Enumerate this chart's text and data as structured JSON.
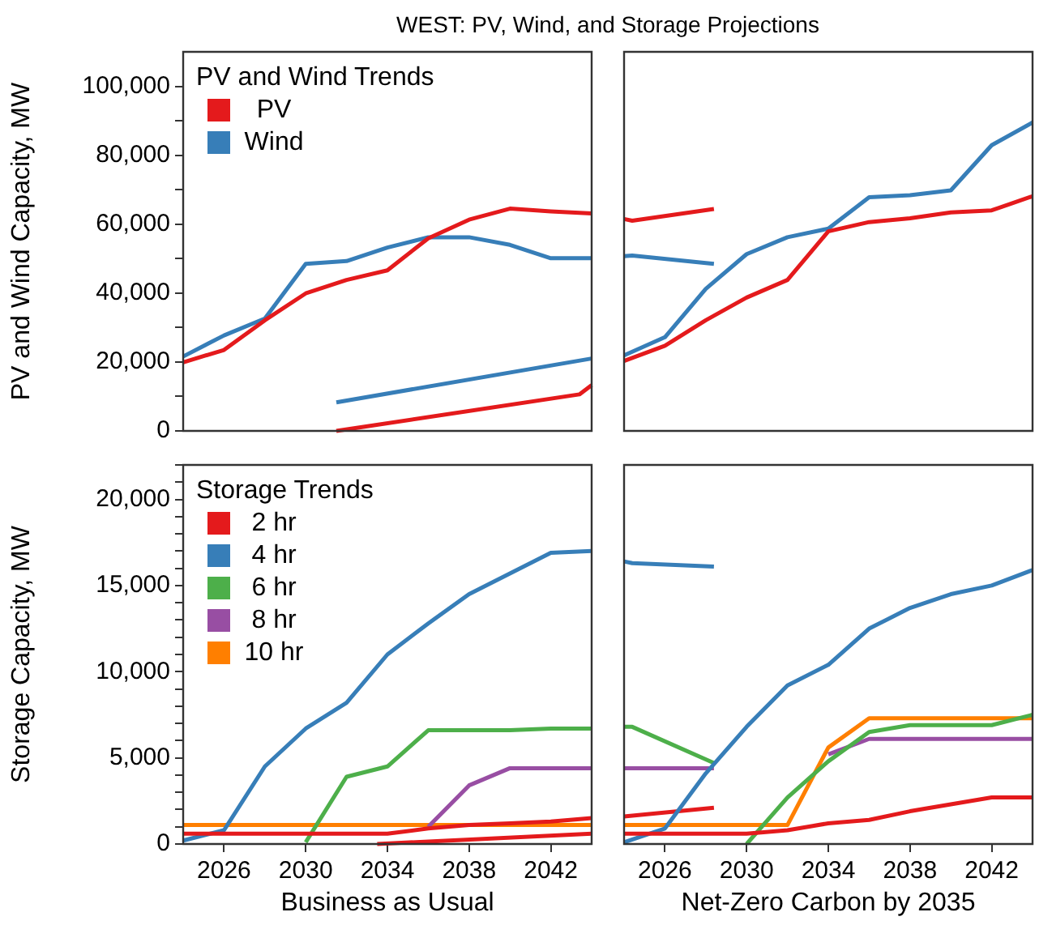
{
  "chart_data": [
    {
      "type": "line",
      "title": "WEST: PV, Wind, and Storage Projections",
      "ylabel": "PV and Wind Capacity, MW",
      "legend_title": "PV and Wind Trends",
      "legend": "top left",
      "grid": false,
      "tick_labels": "y",
      "xlim": [
        2024,
        2044
      ],
      "ylim": [
        0,
        110000
      ],
      "yticks": [
        0,
        {
          "value": 10000,
          "label": null
        },
        {
          "value": 20000,
          "label": "20,000"
        },
        {
          "value": 30000,
          "label": null
        },
        {
          "value": 40000,
          "label": "40,000"
        },
        {
          "value": 50000,
          "label": null
        },
        {
          "value": 60000,
          "label": "60,000"
        },
        {
          "value": 70000,
          "label": null
        },
        {
          "value": 80000,
          "label": "80,000"
        },
        {
          "value": 90000,
          "label": null
        },
        {
          "value": 100000,
          "label": "100,000"
        }
      ],
      "series": [
        {
          "name": "PV",
          "color": "#e41a1c",
          "x": [
            2024,
            2026,
            2028,
            2030,
            2032,
            2034,
            2036,
            2038,
            2040,
            2042,
            2044
          ],
          "values": [
            19900,
            23500,
            32100,
            39900,
            43800,
            46600,
            55900,
            61300,
            64500,
            63700,
            63100
          ]
        },
        {
          "name": "Wind",
          "color": "#377eb8",
          "x": [
            2024,
            2026,
            2028,
            2030,
            2032,
            2034,
            2036,
            2038,
            2040,
            2042,
            2044
          ],
          "values": [
            21600,
            27700,
            32600,
            48500,
            49300,
            53200,
            56200,
            56200,
            54000,
            50100,
            50100
          ]
        },
        {
          "color": "#e41a1c",
          "x": [
            2031.5,
            2043.4,
            2044
          ],
          "values": [
            0,
            10600,
            13300
          ]
        },
        {
          "color": "#377eb8",
          "x": [
            2031.5,
            2044
          ],
          "values": [
            8300,
            21000
          ]
        }
      ]
    },
    {
      "type": "line",
      "tick_labels": false,
      "xlim": [
        2024,
        2044
      ],
      "ylim": [
        0,
        110000
      ],
      "series": [
        {
          "color": "#e41a1c",
          "x": [
            2024,
            2026,
            2028,
            2030,
            2032,
            2034,
            2036,
            2038,
            2040,
            2042,
            2044
          ],
          "values": [
            20300,
            24700,
            32100,
            38700,
            43800,
            57900,
            60600,
            61700,
            63400,
            64000,
            68100
          ]
        },
        {
          "color": "#377eb8",
          "x": [
            2024,
            2026,
            2028,
            2030,
            2032,
            2034,
            2036,
            2038,
            2040,
            2042,
            2044
          ],
          "values": [
            21900,
            27200,
            41200,
            51300,
            56200,
            58700,
            67800,
            68400,
            69800,
            82900,
            89500
          ]
        },
        {
          "color": "#e41a1c",
          "x": [
            2024,
            2024.4,
            2028.4
          ],
          "values": [
            61500,
            61000,
            64400
          ]
        },
        {
          "color": "#377eb8",
          "x": [
            2024,
            2024.4,
            2028.4
          ],
          "values": [
            50700,
            50900,
            48500
          ]
        }
      ]
    },
    {
      "type": "line",
      "ylabel": "Storage Capacity, MW",
      "xlabel": "Business as Usual",
      "legend_title": "Storage Trends",
      "legend": "top left",
      "xlim": [
        2024,
        2044
      ],
      "xticks": [
        2026,
        2030,
        2034,
        2038,
        2042
      ],
      "ylim": [
        0,
        22000
      ],
      "yticks": [
        0,
        {
          "value": 1000,
          "label": null
        },
        {
          "value": 2000,
          "label": null
        },
        {
          "value": 3000,
          "label": null
        },
        {
          "value": 4000,
          "label": null
        },
        {
          "value": 5000,
          "label": "5,000"
        },
        {
          "value": 6000,
          "label": null
        },
        {
          "value": 7000,
          "label": null
        },
        {
          "value": 8000,
          "label": null
        },
        {
          "value": 9000,
          "label": null
        },
        {
          "value": 10000,
          "label": "10,000"
        },
        {
          "value": 11000,
          "label": null
        },
        {
          "value": 12000,
          "label": null
        },
        {
          "value": 13000,
          "label": null
        },
        {
          "value": 14000,
          "label": null
        },
        {
          "value": 15000,
          "label": "15,000"
        },
        {
          "value": 16000,
          "label": null
        },
        {
          "value": 17000,
          "label": null
        },
        {
          "value": 18000,
          "label": null
        },
        {
          "value": 19000,
          "label": null
        },
        {
          "value": 20000,
          "label": "20,000"
        },
        {
          "value": 21000,
          "label": null
        },
        {
          "value": 22000,
          "label": null
        }
      ],
      "series": [
        {
          "name": "2 hr",
          "color": "#e41a1c",
          "x": [
            2024,
            2026,
            2034,
            2036,
            2038,
            2040,
            2042,
            2044
          ],
          "values": [
            600,
            600,
            600,
            900,
            1100,
            1200,
            1300,
            1500
          ]
        },
        {
          "name": "4 hr",
          "color": "#377eb8",
          "x": [
            2024,
            2026,
            2028,
            2030,
            2032,
            2034,
            2036,
            2038,
            2040,
            2042,
            2044
          ],
          "values": [
            200,
            800,
            4500,
            6700,
            8200,
            11000,
            12800,
            14500,
            15700,
            16900,
            17000
          ]
        },
        {
          "name": "6 hr",
          "color": "#4daf4a",
          "x": [
            2030,
            2032,
            2034,
            2036,
            2038,
            2040,
            2042,
            2044
          ],
          "values": [
            100,
            3900,
            4500,
            6600,
            6600,
            6600,
            6700,
            6700
          ]
        },
        {
          "name": "8 hr",
          "color": "#984ea3",
          "x": [
            2036,
            2038,
            2040,
            2042,
            2044
          ],
          "values": [
            1000,
            3400,
            4400,
            4400,
            4400
          ]
        },
        {
          "name": "10 hr",
          "color": "#ff7f00",
          "x": [
            2024,
            2044
          ],
          "values": [
            1100,
            1100
          ]
        },
        {
          "color": "#e41a1c",
          "x": [
            2033.5,
            2044
          ],
          "values": [
            0,
            600
          ]
        }
      ]
    },
    {
      "type": "line",
      "xlabel": "Net-Zero Carbon by 2035",
      "tick_labels": "x",
      "xlim": [
        2024,
        2044
      ],
      "xticks": [
        2026,
        2030,
        2034,
        2038,
        2042
      ],
      "ylim": [
        0,
        22000
      ],
      "series": [
        {
          "color": "#e41a1c",
          "x": [
            2024,
            2026,
            2028,
            2030,
            2032,
            2034,
            2036,
            2038,
            2040,
            2042,
            2044
          ],
          "values": [
            600,
            600,
            600,
            600,
            800,
            1200,
            1400,
            1900,
            2300,
            2700,
            2700
          ]
        },
        {
          "color": "#377eb8",
          "x": [
            2024,
            2026,
            2028,
            2030,
            2032,
            2034,
            2036,
            2038,
            2040,
            2042,
            2044
          ],
          "values": [
            100,
            900,
            4100,
            6800,
            9200,
            10400,
            12500,
            13700,
            14500,
            15000,
            15900
          ]
        },
        {
          "color": "#4daf4a",
          "x": [
            2030,
            2032,
            2034,
            2036,
            2038,
            2040,
            2042,
            2044
          ],
          "values": [
            0,
            2700,
            4800,
            6500,
            6900,
            6900,
            6900,
            7500
          ]
        },
        {
          "color": "#984ea3",
          "x": [
            2034,
            2036,
            2038,
            2040,
            2042,
            2044
          ],
          "values": [
            5200,
            6100,
            6100,
            6100,
            6100,
            6100
          ]
        },
        {
          "color": "#ff7f00",
          "x": [
            2024,
            2026,
            2028,
            2030,
            2032,
            2034,
            2036,
            2038,
            2040,
            2042,
            2044
          ],
          "values": [
            1100,
            1100,
            1100,
            1100,
            1100,
            5600,
            7300,
            7300,
            7300,
            7300,
            7300
          ]
        },
        {
          "color": "#e41a1c",
          "x": [
            2024,
            2028.4
          ],
          "values": [
            1600,
            2100
          ]
        },
        {
          "color": "#377eb8",
          "x": [
            2024,
            2024.4,
            2028.4
          ],
          "values": [
            16400,
            16300,
            16100
          ]
        },
        {
          "color": "#4daf4a",
          "x": [
            2024,
            2024.4,
            2028.4
          ],
          "values": [
            6800,
            6800,
            4700
          ]
        },
        {
          "color": "#984ea3",
          "x": [
            2024,
            2028.4
          ],
          "values": [
            4400,
            4400
          ]
        }
      ]
    }
  ]
}
